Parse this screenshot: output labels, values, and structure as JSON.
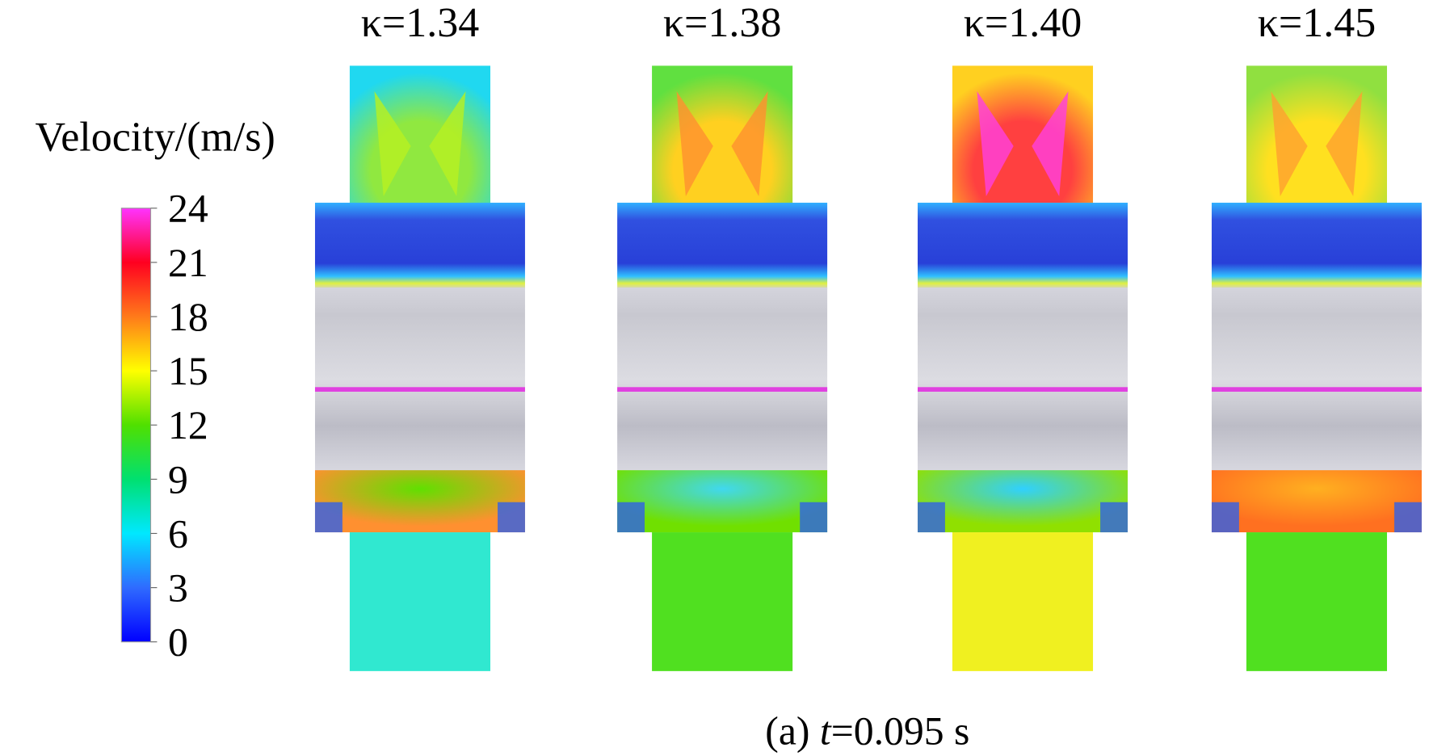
{
  "colorbar": {
    "label": "Velocity/(m/s)",
    "range": [
      0,
      24
    ],
    "ticks": [
      0,
      3,
      6,
      9,
      12,
      15,
      18,
      21,
      24
    ]
  },
  "panels": [
    {
      "title": "κ=1.34"
    },
    {
      "title": "κ=1.38"
    },
    {
      "title": "κ=1.40"
    },
    {
      "title": "κ=1.45"
    }
  ],
  "caption": {
    "prefix": "(a)",
    "variable": "t",
    "rest": "=0.095 s"
  }
}
